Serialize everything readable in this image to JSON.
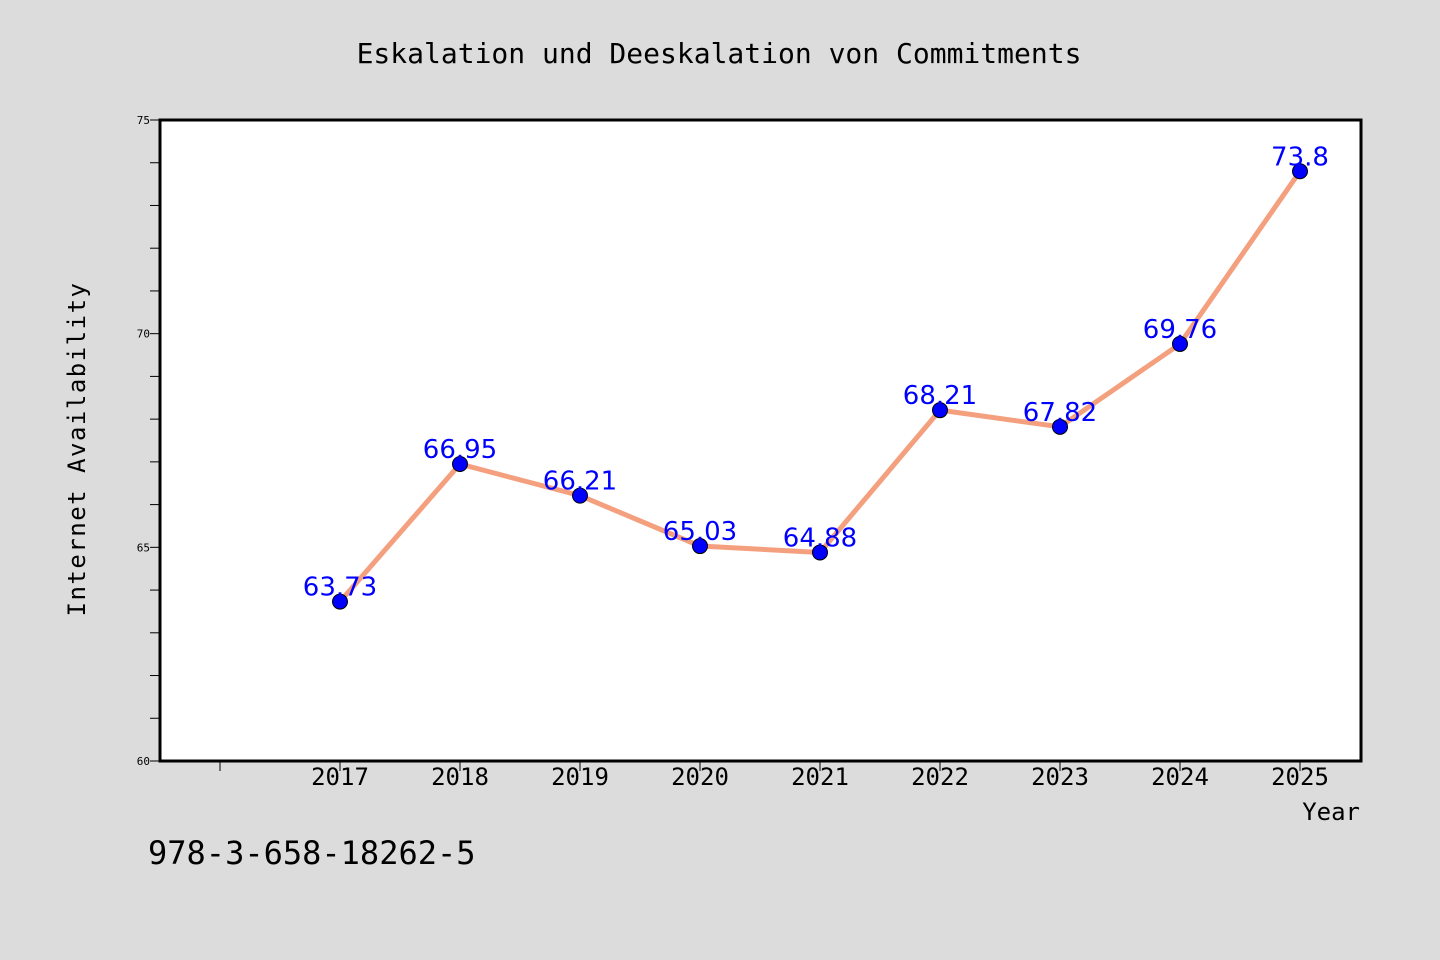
{
  "chart_data": {
    "type": "line",
    "title": "Eskalation und Deeskalation von Commitments",
    "xlabel": "Year",
    "ylabel": "Internet Availability",
    "x": [
      "2017",
      "2018",
      "2019",
      "2020",
      "2021",
      "2022",
      "2023",
      "2024",
      "2025"
    ],
    "series": [
      {
        "values": [
          63.73,
          66.95,
          66.21,
          65.03,
          64.88,
          68.21,
          67.82,
          69.76,
          73.8
        ],
        "labels": [
          "63.73",
          "66.95",
          "66.21",
          "65.03",
          "64.88",
          "68.21",
          "67.82",
          "69.76",
          "73.8"
        ]
      }
    ],
    "ylim": [
      60,
      75
    ],
    "y_ticks": [
      "60",
      "65",
      "70",
      "75"
    ],
    "grid": false,
    "line_color": "#f4a07e",
    "marker_color": "#0000ff",
    "label_color": "#0000ff"
  },
  "footer_text": "978-3-658-18262-5"
}
